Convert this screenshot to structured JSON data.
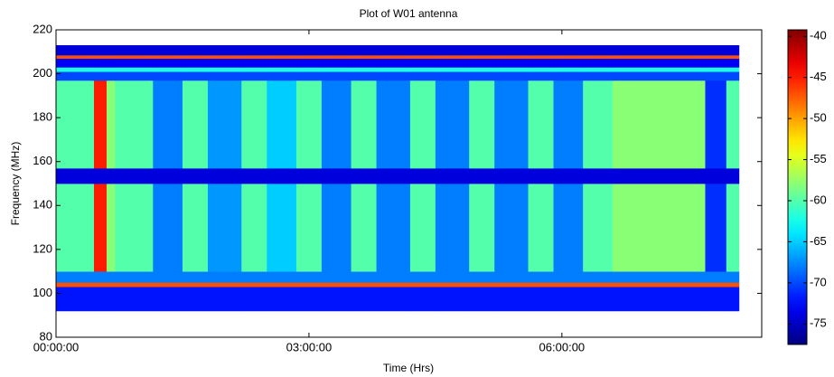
{
  "chart_data": {
    "type": "heatmap",
    "title": "Plot of W01 antenna",
    "xlabel": "Time (Hrs)",
    "ylabel": "Frequency (MHz)",
    "x_edges": [
      0,
      0.45,
      0.6,
      0.7,
      1.15,
      1.5,
      1.8,
      2.2,
      2.5,
      2.85,
      3.15,
      3.5,
      3.8,
      4.2,
      4.5,
      4.9,
      5.2,
      5.6,
      5.9,
      6.25,
      6.6,
      7.7,
      7.95,
      8.1
    ],
    "y_edges": [
      92,
      103,
      105,
      110,
      150,
      157,
      197,
      201,
      203,
      207,
      208.5,
      213
    ],
    "z": [
      [
        -72,
        -72,
        -72,
        -72,
        -72,
        -72,
        -72,
        -72,
        -72,
        -72,
        -72,
        -72,
        -72,
        -72,
        -72,
        -72,
        -72,
        -72,
        -72,
        -72,
        -72,
        -72,
        -72
      ],
      [
        -47,
        -47,
        -47,
        -47,
        -47,
        -47,
        -47,
        -47,
        -47,
        -47,
        -47,
        -47,
        -47,
        -47,
        -47,
        -47,
        -47,
        -47,
        -47,
        -47,
        -47,
        -47,
        -47
      ],
      [
        -68,
        -68,
        -68,
        -68,
        -68,
        -68,
        -68,
        -68,
        -68,
        -68,
        -68,
        -68,
        -68,
        -68,
        -68,
        -68,
        -68,
        -68,
        -68,
        -68,
        -68,
        -68,
        -68
      ],
      [
        -60,
        -45,
        -58,
        -60,
        -68,
        -60,
        -67,
        -60,
        -65,
        -60,
        -68,
        -60,
        -68,
        -60,
        -68,
        -60,
        -68,
        -60,
        -68,
        -60,
        -58,
        -71,
        -60
      ],
      [
        -74,
        -74,
        -74,
        -74,
        -74,
        -74,
        -74,
        -74,
        -74,
        -74,
        -74,
        -74,
        -74,
        -74,
        -74,
        -74,
        -74,
        -74,
        -74,
        -74,
        -74,
        -74,
        -74
      ],
      [
        -60,
        -45,
        -58,
        -60,
        -68,
        -60,
        -67,
        -60,
        -65,
        -60,
        -68,
        -60,
        -68,
        -60,
        -68,
        -60,
        -68,
        -60,
        -68,
        -60,
        -58,
        -71,
        -60
      ],
      [
        -70,
        -70,
        -70,
        -70,
        -70,
        -70,
        -70,
        -70,
        -70,
        -70,
        -70,
        -70,
        -70,
        -70,
        -70,
        -70,
        -70,
        -70,
        -70,
        -70,
        -70,
        -70,
        -70
      ],
      [
        -62,
        -62,
        -62,
        -62,
        -62,
        -62,
        -62,
        -62,
        -62,
        -62,
        -62,
        -62,
        -62,
        -62,
        -62,
        -62,
        -62,
        -62,
        -62,
        -62,
        -62,
        -62,
        -62
      ],
      [
        -73,
        -73,
        -73,
        -73,
        -73,
        -73,
        -73,
        -73,
        -73,
        -73,
        -73,
        -73,
        -73,
        -73,
        -73,
        -73,
        -73,
        -73,
        -73,
        -73,
        -73,
        -73,
        -73
      ],
      [
        -47,
        -47,
        -47,
        -47,
        -47,
        -47,
        -47,
        -47,
        -47,
        -47,
        -47,
        -47,
        -47,
        -47,
        -47,
        -47,
        -47,
        -47,
        -47,
        -47,
        -47,
        -47,
        -47
      ],
      [
        -74,
        -74,
        -74,
        -74,
        -74,
        -74,
        -74,
        -74,
        -74,
        -74,
        -74,
        -74,
        -74,
        -74,
        -74,
        -74,
        -74,
        -74,
        -74,
        -74,
        -74,
        -74,
        -74
      ]
    ],
    "xlim": [
      0,
      8.37
    ],
    "ylim": [
      80,
      220
    ],
    "xticks": [
      {
        "value": 0,
        "label": "00:00:00"
      },
      {
        "value": 3,
        "label": "03:00:00"
      },
      {
        "value": 6,
        "label": "06:00:00"
      }
    ],
    "yticks": [
      80,
      100,
      120,
      140,
      160,
      180,
      200,
      220
    ],
    "colormap": "jet",
    "clim": [
      -77.5,
      -39.2
    ],
    "colorbar_ticks": [
      -40,
      -45,
      -50,
      -55,
      -60,
      -65,
      -70,
      -75
    ]
  }
}
